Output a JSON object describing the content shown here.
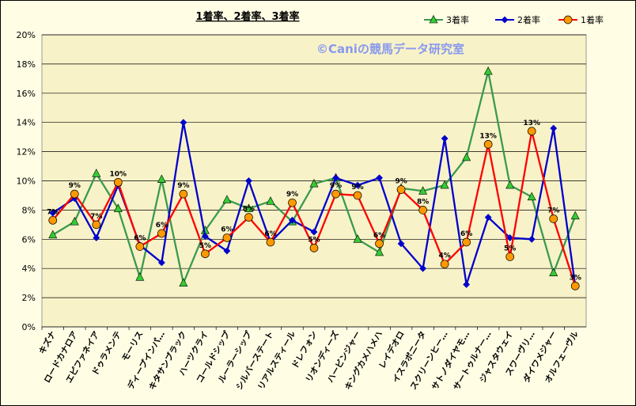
{
  "chart_data": {
    "type": "line",
    "title": "1着率、2着率、3着率",
    "watermark": "©Caniの競馬データ研究室",
    "xlabel": "",
    "ylabel": "",
    "ylim": [
      0,
      20
    ],
    "yticks": [
      "0%",
      "2%",
      "4%",
      "6%",
      "8%",
      "10%",
      "12%",
      "14%",
      "16%",
      "18%",
      "20%"
    ],
    "grid": true,
    "legend_position": "top-right",
    "categories": [
      "キズナ",
      "ロードカナロア",
      "エピファネイア",
      "ドゥラメンテ",
      "モーリス",
      "ディープインパ…",
      "キタサンブラック",
      "ハーツクライ",
      "コールドシップ",
      "ルーラーシップ",
      "シルバーステート",
      "リアルスティール",
      "ドレフォン",
      "リオンディーズ",
      "ハービンジャー",
      "キングカメハメハ",
      "レイデオロ",
      "イスラボニータ",
      "スクリーンヒー…",
      "サトノダイヤモ…",
      "サートゥルナー…",
      "ジャスタウェイ",
      "スワーヴリ…",
      "ダイワメジャー",
      "オルフェーヴル"
    ],
    "series": [
      {
        "name": "3着率",
        "color": "#3a9a50",
        "marker": "triangle",
        "marker_color": "#33cc33",
        "values": [
          6.3,
          7.2,
          10.5,
          8.1,
          3.4,
          10.1,
          3.0,
          6.6,
          8.7,
          8.1,
          8.6,
          7.2,
          9.8,
          10.2,
          6.0,
          5.1,
          9.5,
          9.3,
          9.7,
          11.6,
          17.5,
          9.7,
          8.9,
          3.7,
          7.6
        ]
      },
      {
        "name": "2着率",
        "color": "#0000cc",
        "marker": "diamond",
        "marker_color": "#0000cc",
        "values": [
          7.8,
          8.8,
          6.1,
          9.7,
          5.6,
          4.4,
          14.0,
          6.2,
          5.2,
          10.0,
          5.8,
          7.3,
          6.5,
          10.2,
          9.7,
          10.2,
          5.7,
          4.0,
          12.9,
          2.9,
          7.5,
          6.1,
          6.0,
          13.6,
          2.8
        ]
      },
      {
        "name": "1着率",
        "color": "#ff0000",
        "marker": "circle",
        "marker_color": "#ff9900",
        "values": [
          7.3,
          9.1,
          7.0,
          9.9,
          5.5,
          6.4,
          9.1,
          5.0,
          6.1,
          7.5,
          5.8,
          8.5,
          5.4,
          9.1,
          9.0,
          5.7,
          9.4,
          8.0,
          4.3,
          5.8,
          12.5,
          4.8,
          13.4,
          7.4,
          2.8
        ]
      }
    ],
    "data_labels_series": "1着率",
    "data_labels": [
      "7%",
      "9%",
      "7%",
      "10%",
      "6%",
      "6%",
      "9%",
      "5%",
      "6%",
      "8%",
      "6%",
      "9%",
      "5%",
      "9%",
      "9%",
      "6%",
      "9%",
      "8%",
      "4%",
      "6%",
      "13%",
      "5%",
      "13%",
      "7%",
      "3%"
    ]
  }
}
